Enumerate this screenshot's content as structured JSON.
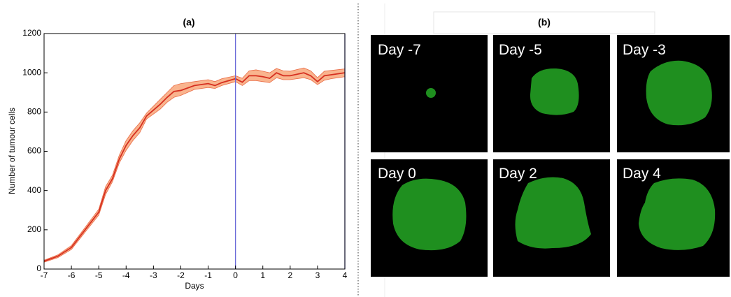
{
  "chart_data": {
    "type": "line",
    "title": "(a)",
    "x_label": "Days",
    "y_label": "Number of tumour cells",
    "x": [
      -7,
      -6.5,
      -6,
      -5.5,
      -5,
      -4.75,
      -4.5,
      -4.25,
      -4,
      -3.75,
      -3.5,
      -3.25,
      -3,
      -2.75,
      -2.5,
      -2.25,
      -2,
      -1.5,
      -1,
      -0.75,
      -0.5,
      0,
      0.25,
      0.5,
      0.75,
      1,
      1.25,
      1.5,
      1.75,
      2,
      2.5,
      2.75,
      3,
      3.25,
      3.5,
      4
    ],
    "series": [
      {
        "color": "#d62f20",
        "values": [
          40,
          65,
          110,
          200,
          290,
          400,
          460,
          560,
          630,
          680,
          720,
          780,
          810,
          840,
          875,
          905,
          910,
          935,
          945,
          935,
          950,
          970,
          952,
          985,
          985,
          980,
          972,
          1000,
          985,
          985,
          1000,
          985,
          955,
          985,
          990,
          1000
        ]
      }
    ],
    "band": {
      "color": "#f9b48e",
      "edge": "#ea6a44",
      "lower": [
        35,
        58,
        100,
        188,
        275,
        380,
        445,
        540,
        605,
        655,
        695,
        765,
        790,
        815,
        850,
        875,
        885,
        915,
        925,
        920,
        935,
        955,
        935,
        960,
        960,
        955,
        950,
        975,
        965,
        965,
        975,
        965,
        940,
        962,
        970,
        980
      ],
      "upper": [
        45,
        72,
        120,
        212,
        305,
        420,
        478,
        580,
        655,
        705,
        745,
        795,
        830,
        865,
        900,
        935,
        945,
        955,
        965,
        955,
        970,
        985,
        972,
        1010,
        1015,
        1008,
        1000,
        1022,
        1010,
        1008,
        1025,
        1010,
        975,
        1008,
        1012,
        1020
      ]
    },
    "vlines": [
      0,
      4
    ],
    "vline_color": "#6a6ad8",
    "xlim": [
      -7,
      4
    ],
    "ylim": [
      0,
      1200
    ],
    "xticks": [
      -7,
      -6,
      -5,
      -4,
      -3,
      -2,
      -1,
      0,
      1,
      2,
      3,
      4
    ],
    "yticks": [
      0,
      200,
      400,
      600,
      800,
      1000,
      1200
    ]
  },
  "panel_b": {
    "title": "(b)",
    "panels": [
      "Day -7",
      "Day -5",
      "Day -3",
      "Day 0",
      "Day 2",
      "Day 4"
    ]
  }
}
